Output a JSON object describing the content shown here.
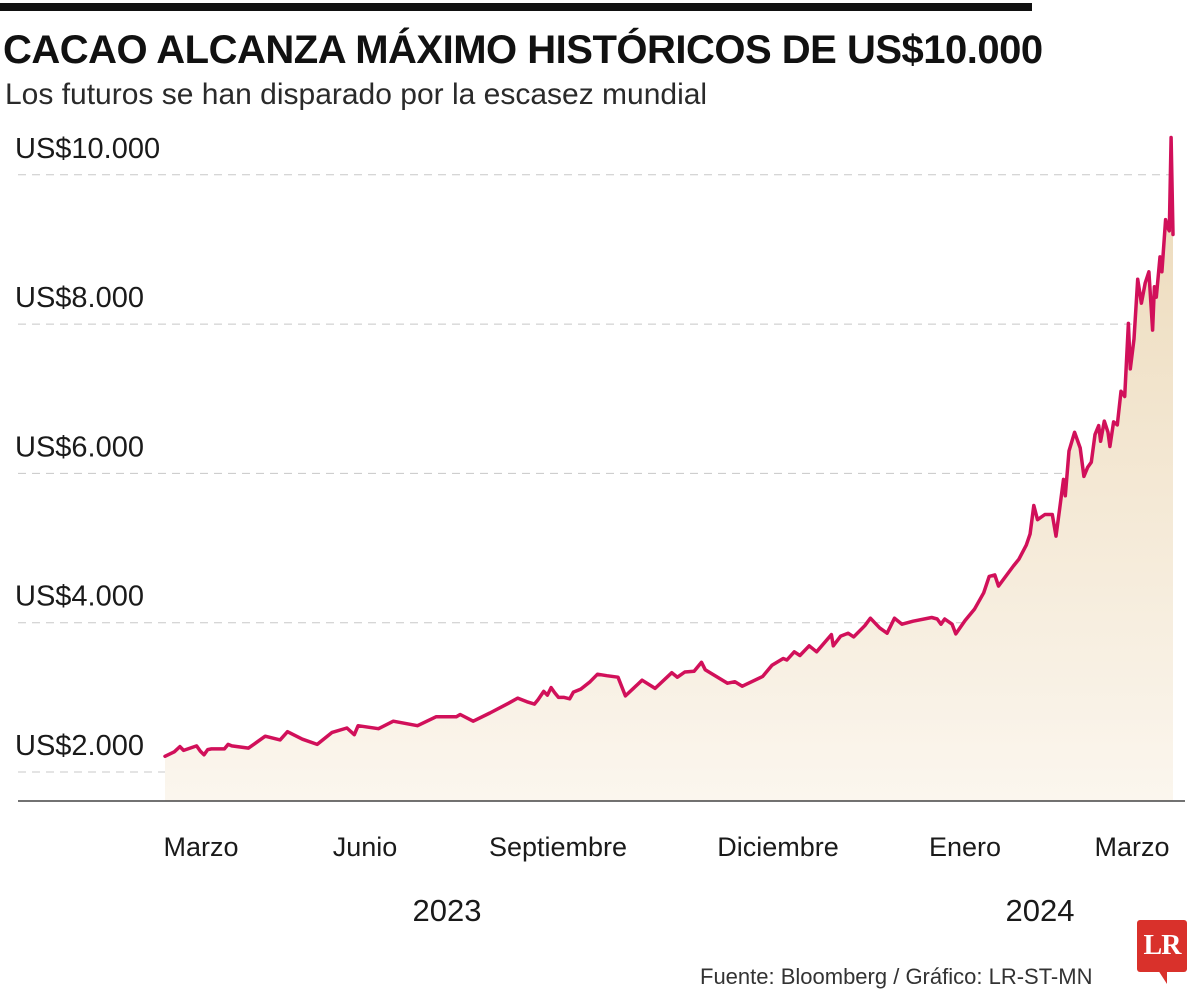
{
  "header": {
    "title": "CACAO ALCANZA MÁXIMO HISTÓRICOS DE US$10.000",
    "subtitle": "Los futuros se han disparado por la escasez mundial"
  },
  "footer": {
    "source": "Fuente:  Bloomberg / Gráfico: LR-ST-MN",
    "logo_text": "LR"
  },
  "colors": {
    "line": "#d1105a",
    "area_top": "#ecd9b8",
    "area_bottom": "#fbf6ee",
    "grid": "#c8c8c8",
    "axis": "#444444"
  },
  "chart_data": {
    "type": "area",
    "x_label": "",
    "y_label": "",
    "ylim": [
      1650,
      10600
    ],
    "y_ticks": [
      2000,
      4000,
      6000,
      8000,
      10000
    ],
    "y_tick_labels": [
      "US$2.000",
      "US$4.000",
      "US$6.000",
      "US$8.000",
      "US$10.000"
    ],
    "grid": true,
    "x_tick_labels": [
      "Marzo",
      "Junio",
      "Septiembre",
      "Diciembre",
      "Enero",
      "Marzo"
    ],
    "year_labels": [
      "2023",
      "2024"
    ],
    "series": [
      {
        "name": "",
        "points": [
          [
            0,
            2210
          ],
          [
            10,
            2270
          ],
          [
            16,
            2340
          ],
          [
            20,
            2290
          ],
          [
            34,
            2350
          ],
          [
            38,
            2280
          ],
          [
            42,
            2230
          ],
          [
            46,
            2300
          ],
          [
            50,
            2310
          ],
          [
            64,
            2310
          ],
          [
            68,
            2370
          ],
          [
            72,
            2350
          ],
          [
            90,
            2320
          ],
          [
            108,
            2480
          ],
          [
            124,
            2430
          ],
          [
            132,
            2540
          ],
          [
            148,
            2440
          ],
          [
            164,
            2370
          ],
          [
            180,
            2530
          ],
          [
            196,
            2590
          ],
          [
            204,
            2500
          ],
          [
            208,
            2620
          ],
          [
            230,
            2580
          ],
          [
            246,
            2680
          ],
          [
            272,
            2620
          ],
          [
            292,
            2740
          ],
          [
            314,
            2740
          ],
          [
            318,
            2770
          ],
          [
            332,
            2680
          ],
          [
            350,
            2790
          ],
          [
            370,
            2920
          ],
          [
            380,
            2990
          ],
          [
            390,
            2940
          ],
          [
            398,
            2910
          ],
          [
            402,
            2970
          ],
          [
            408,
            3080
          ],
          [
            412,
            3030
          ],
          [
            416,
            3130
          ],
          [
            420,
            3060
          ],
          [
            424,
            3000
          ],
          [
            430,
            3000
          ],
          [
            436,
            2980
          ],
          [
            440,
            3070
          ],
          [
            448,
            3110
          ],
          [
            458,
            3210
          ],
          [
            466,
            3310
          ],
          [
            476,
            3290
          ],
          [
            488,
            3270
          ],
          [
            496,
            3020
          ],
          [
            514,
            3230
          ],
          [
            528,
            3120
          ],
          [
            546,
            3330
          ],
          [
            552,
            3270
          ],
          [
            560,
            3340
          ],
          [
            570,
            3350
          ],
          [
            578,
            3470
          ],
          [
            582,
            3370
          ],
          [
            606,
            3190
          ],
          [
            614,
            3210
          ],
          [
            622,
            3150
          ],
          [
            644,
            3280
          ],
          [
            654,
            3430
          ],
          [
            666,
            3520
          ],
          [
            670,
            3500
          ],
          [
            678,
            3610
          ],
          [
            684,
            3560
          ],
          [
            694,
            3690
          ],
          [
            702,
            3610
          ],
          [
            718,
            3840
          ],
          [
            720,
            3690
          ],
          [
            728,
            3820
          ],
          [
            736,
            3860
          ],
          [
            742,
            3810
          ],
          [
            754,
            3960
          ],
          [
            760,
            4060
          ],
          [
            770,
            3930
          ],
          [
            778,
            3860
          ],
          [
            786,
            4060
          ],
          [
            794,
            3980
          ],
          [
            806,
            4020
          ],
          [
            826,
            4070
          ],
          [
            832,
            4050
          ],
          [
            836,
            3980
          ],
          [
            840,
            4050
          ],
          [
            848,
            3980
          ],
          [
            852,
            3850
          ],
          [
            862,
            4030
          ],
          [
            872,
            4180
          ],
          [
            882,
            4400
          ],
          [
            888,
            4620
          ],
          [
            894,
            4640
          ],
          [
            898,
            4490
          ],
          [
            914,
            4760
          ],
          [
            920,
            4850
          ],
          [
            928,
            5040
          ],
          [
            932,
            5190
          ],
          [
            936,
            5570
          ],
          [
            940,
            5380
          ],
          [
            948,
            5450
          ],
          [
            952,
            5450
          ],
          [
            956,
            5450
          ],
          [
            960,
            5160
          ],
          [
            964,
            5540
          ],
          [
            968,
            5920
          ],
          [
            970,
            5700
          ],
          [
            974,
            6300
          ],
          [
            980,
            6550
          ],
          [
            986,
            6340
          ],
          [
            990,
            5960
          ],
          [
            994,
            6080
          ],
          [
            998,
            6150
          ],
          [
            1002,
            6520
          ],
          [
            1006,
            6640
          ],
          [
            1008,
            6430
          ],
          [
            1012,
            6700
          ],
          [
            1016,
            6550
          ],
          [
            1018,
            6360
          ],
          [
            1022,
            6690
          ],
          [
            1026,
            6650
          ],
          [
            1030,
            7100
          ],
          [
            1034,
            7030
          ],
          [
            1038,
            8010
          ],
          [
            1040,
            7400
          ],
          [
            1044,
            7800
          ],
          [
            1048,
            8600
          ],
          [
            1052,
            8280
          ],
          [
            1056,
            8550
          ],
          [
            1060,
            8700
          ],
          [
            1064,
            7920
          ],
          [
            1066,
            8500
          ],
          [
            1068,
            8360
          ],
          [
            1072,
            8900
          ],
          [
            1074,
            8700
          ],
          [
            1078,
            9400
          ],
          [
            1080,
            9300
          ],
          [
            1082,
            9250
          ],
          [
            1084,
            10500
          ],
          [
            1086,
            9200
          ]
        ]
      }
    ]
  }
}
